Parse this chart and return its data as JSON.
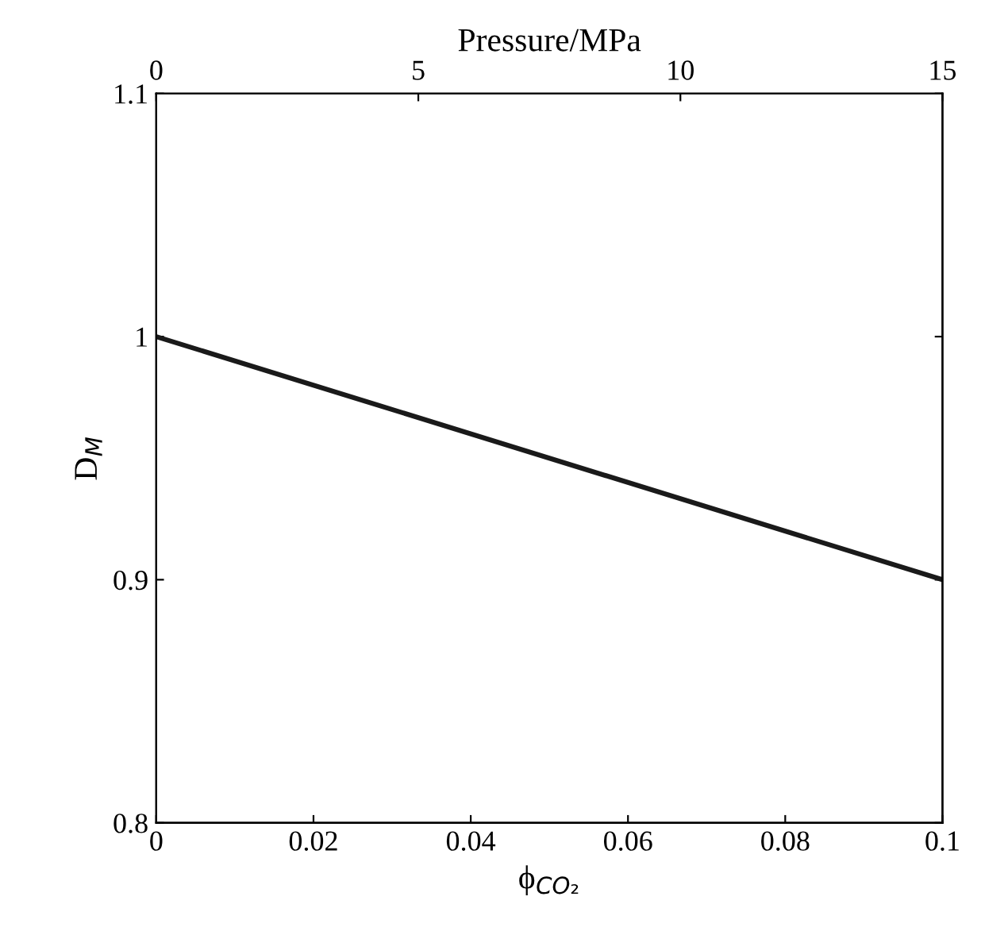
{
  "chart_data": {
    "type": "line",
    "xlabel": "ϕ$_{CO₂}$",
    "ylabel": "D$_{M}$",
    "x2label": "Pressure/MPa",
    "x": [
      0,
      0.1
    ],
    "series": [
      {
        "color": "#1a1a1a",
        "values": [
          1,
          0.9
        ]
      }
    ],
    "xlim": [
      0,
      0.1
    ],
    "xticks": [
      0,
      0.02,
      0.04,
      0.06,
      0.08,
      0.1
    ],
    "ylim": [
      0.8,
      1.1
    ],
    "yticks": [
      0.8,
      0.9,
      1,
      1.1
    ],
    "x2lim": [
      0,
      15
    ],
    "x2ticks": [
      0,
      5,
      10,
      15
    ],
    "grid": false,
    "line_style": "solid"
  }
}
